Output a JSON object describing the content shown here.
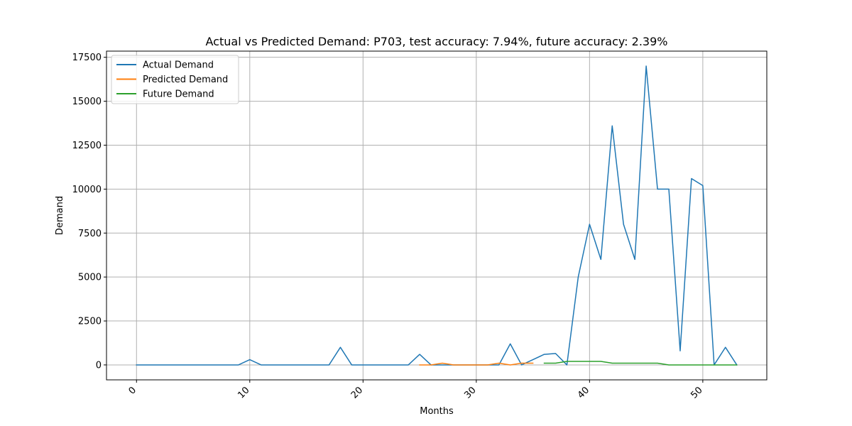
{
  "chart_data": {
    "type": "line",
    "title": "Actual vs Predicted Demand: P703, test accuracy: 7.94%, future accuracy: 2.39%",
    "xlabel": "Months",
    "ylabel": "Demand",
    "xlim": [
      -2.65,
      55.65
    ],
    "ylim": [
      -850,
      17850
    ],
    "xticks": [
      0,
      10,
      20,
      30,
      40,
      50
    ],
    "yticks": [
      0,
      2500,
      5000,
      7500,
      10000,
      12500,
      15000,
      17500
    ],
    "grid": true,
    "legend_position": "top-left",
    "series": [
      {
        "name": "Actual Demand",
        "color": "#1f77b4",
        "x": [
          0,
          1,
          2,
          3,
          4,
          5,
          6,
          7,
          8,
          9,
          10,
          11,
          12,
          13,
          14,
          15,
          16,
          17,
          18,
          19,
          20,
          21,
          22,
          23,
          24,
          25,
          26,
          27,
          28,
          29,
          30,
          31,
          32,
          33,
          34,
          35,
          36,
          37,
          38,
          39,
          40,
          41,
          42,
          43,
          44,
          45,
          46,
          47,
          48,
          49,
          50,
          51,
          52,
          53
        ],
        "values": [
          0,
          0,
          0,
          0,
          0,
          0,
          0,
          0,
          0,
          0,
          300,
          0,
          0,
          0,
          0,
          0,
          0,
          0,
          1000,
          0,
          0,
          0,
          0,
          0,
          0,
          600,
          0,
          0,
          0,
          0,
          0,
          0,
          0,
          1200,
          0,
          300,
          600,
          650,
          0,
          5000,
          8000,
          6000,
          13600,
          8000,
          6000,
          17000,
          10000,
          10000,
          800,
          10600,
          10200,
          0,
          1000,
          0
        ]
      },
      {
        "name": "Predicted Demand",
        "color": "#ff7f0e",
        "x": [
          25,
          26,
          27,
          28,
          29,
          30,
          31,
          32,
          33,
          34,
          35
        ],
        "values": [
          0,
          0,
          100,
          0,
          0,
          0,
          0,
          100,
          0,
          100,
          100
        ]
      },
      {
        "name": "Future Demand",
        "color": "#2ca02c",
        "x": [
          36,
          37,
          38,
          39,
          40,
          41,
          42,
          43,
          44,
          45,
          46,
          47,
          48,
          49,
          50,
          51,
          52,
          53
        ],
        "values": [
          100,
          100,
          200,
          200,
          200,
          200,
          100,
          100,
          100,
          100,
          100,
          0,
          0,
          0,
          0,
          0,
          0,
          0
        ]
      }
    ]
  }
}
